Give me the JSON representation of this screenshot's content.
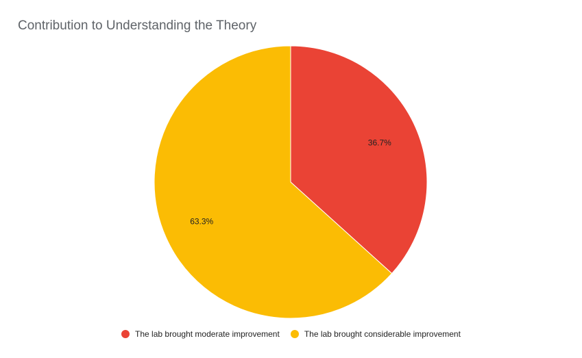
{
  "chart_data": {
    "type": "pie",
    "title": "Contribution to Understanding the Theory",
    "slices": [
      {
        "label": "The lab brought moderate improvement",
        "value": 36.7,
        "display": "36.7%",
        "color": "#ea4335"
      },
      {
        "label": "The lab brought considerable improvement",
        "value": 63.3,
        "display": "63.3%",
        "color": "#fbbc04"
      }
    ],
    "legend_position": "bottom"
  }
}
